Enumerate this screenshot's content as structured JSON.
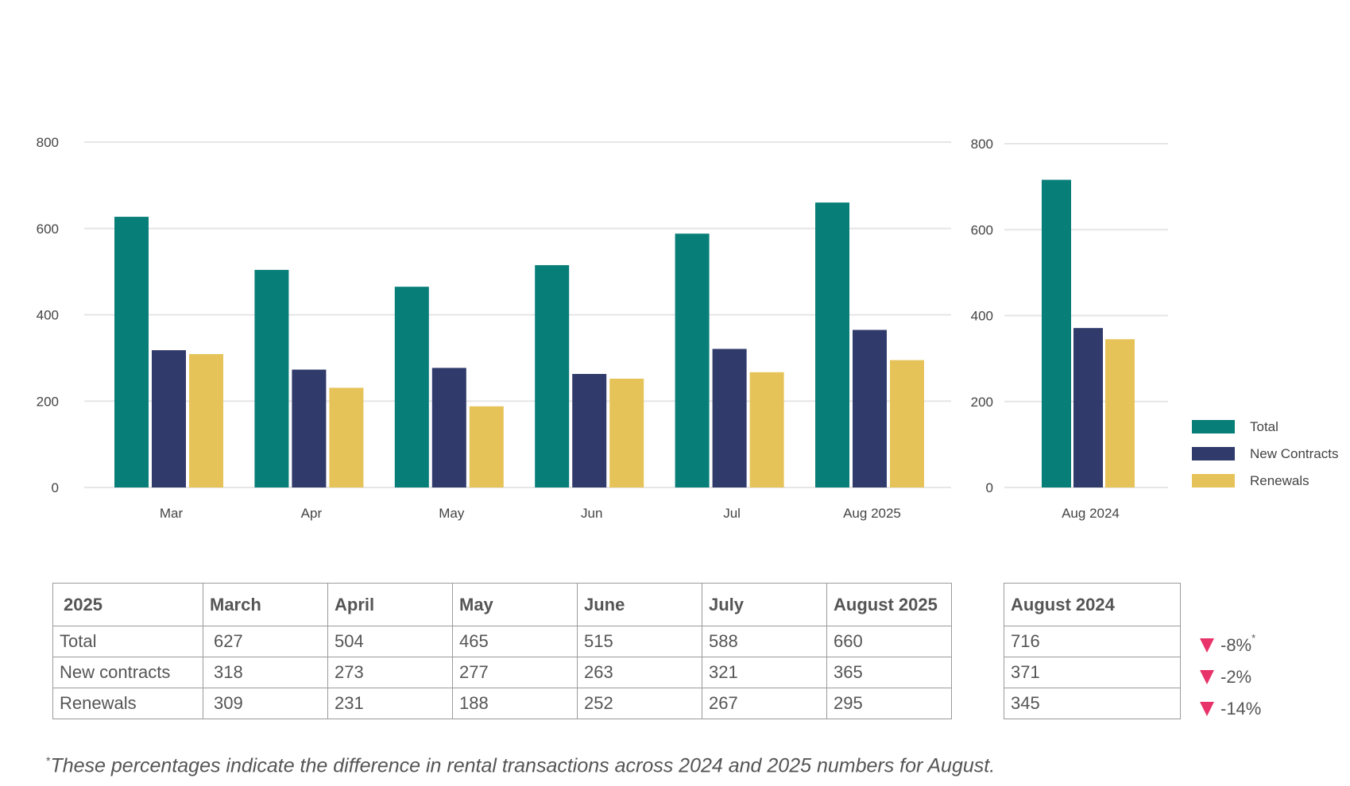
{
  "chart_data": [
    {
      "type": "bar",
      "categories": [
        "Mar",
        "Apr",
        "May",
        "Jun",
        "Jul",
        "Aug 2025"
      ],
      "series": [
        {
          "name": "Total",
          "values": [
            627,
            504,
            465,
            515,
            588,
            660
          ]
        },
        {
          "name": "New Contracts",
          "values": [
            318,
            273,
            277,
            263,
            321,
            365
          ]
        },
        {
          "name": "Renewals",
          "values": [
            309,
            231,
            188,
            252,
            267,
            295
          ]
        }
      ],
      "yticks": [
        0,
        200,
        400,
        600,
        800
      ],
      "ylim": [
        0,
        800
      ],
      "grid": true
    },
    {
      "type": "bar",
      "categories": [
        "Aug 2024"
      ],
      "series": [
        {
          "name": "Total",
          "values": [
            716
          ]
        },
        {
          "name": "New Contracts",
          "values": [
            371
          ]
        },
        {
          "name": "Renewals",
          "values": [
            345
          ]
        }
      ],
      "yticks": [
        0,
        200,
        400,
        600,
        800
      ],
      "ylim": [
        0,
        800
      ],
      "grid": true,
      "legend": "right"
    }
  ],
  "colors": {
    "Total": "#087e79",
    "New Contracts": "#303a6b",
    "Renewals": "#e6c358",
    "grid": "#e6e6e6",
    "down": "#e8336a"
  },
  "legend": [
    "Total",
    "New Contracts",
    "Renewals"
  ],
  "table": {
    "headers": [
      "2025",
      "March",
      "April",
      "May",
      "June",
      "July",
      "August 2025"
    ],
    "rows": [
      [
        "Total",
        "627",
        "504",
        "465",
        "515",
        "588",
        "660"
      ],
      [
        "New contracts",
        "318",
        "273",
        "277",
        "263",
        "321",
        "365"
      ],
      [
        "Renewals",
        "309",
        "231",
        "188",
        "252",
        "267",
        "295"
      ]
    ]
  },
  "prev_table": {
    "header": "August 2024",
    "values": [
      "716",
      "371",
      "345"
    ]
  },
  "changes": [
    "-8%",
    "-2%",
    "-14%"
  ],
  "change_marker": "*",
  "footnote": {
    "marker": "*",
    "text": "These percentages indicate the difference in rental transactions across 2024 and 2025 numbers for August."
  }
}
